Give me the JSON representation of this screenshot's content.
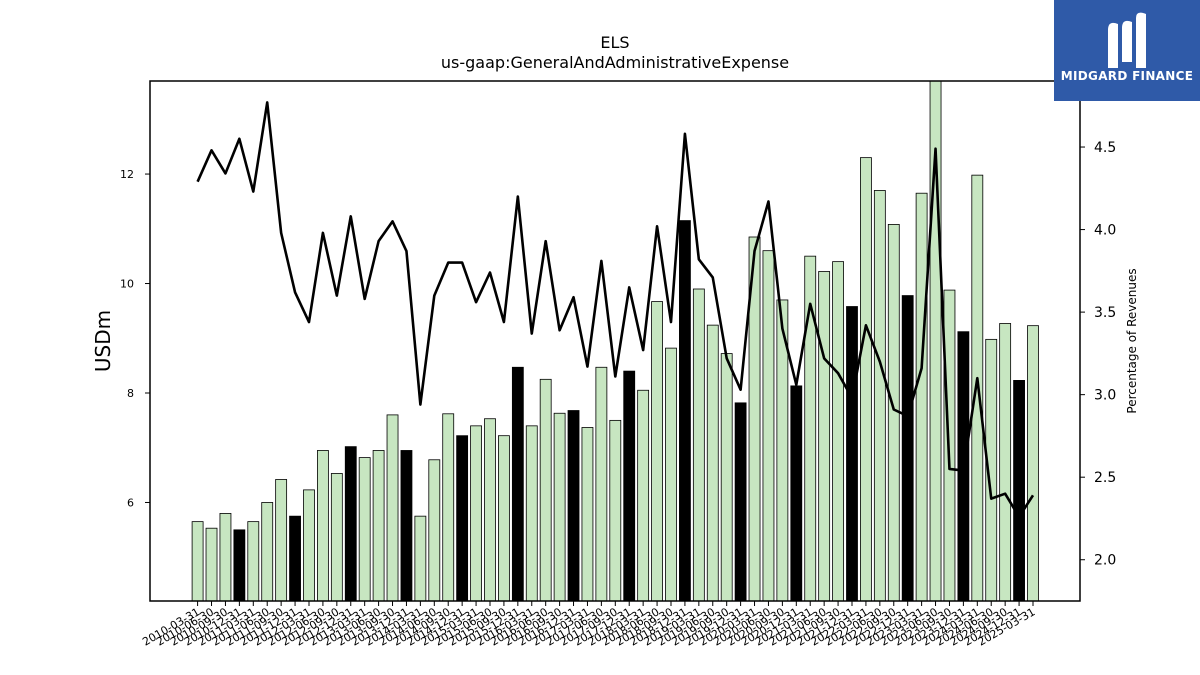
{
  "chart_data": {
    "type": "bar",
    "title": "ELS",
    "subtitle": "us-gaap:GeneralAndAdministrativeExpense",
    "ylabel": "USDm",
    "y2label": "Percentage of Revenues",
    "ylim": [
      4.2,
      13.7
    ],
    "y2lim": [
      1.75,
      4.9
    ],
    "yticks": [
      6,
      8,
      10,
      12
    ],
    "y2ticks": [
      2.0,
      2.5,
      3.0,
      3.5,
      4.0,
      4.5
    ],
    "x": [
      "2010-03-31",
      "2010-06-30",
      "2010-09-30",
      "2010-12-31",
      "2011-03-31",
      "2011-06-30",
      "2011-09-30",
      "2011-12-31",
      "2012-03-31",
      "2012-06-30",
      "2012-09-30",
      "2012-12-31",
      "2013-03-31",
      "2013-06-30",
      "2013-09-30",
      "2013-12-31",
      "2014-03-31",
      "2014-06-30",
      "2014-09-30",
      "2014-12-31",
      "2015-03-31",
      "2015-06-30",
      "2015-09-30",
      "2015-12-31",
      "2016-03-31",
      "2016-06-30",
      "2016-09-30",
      "2016-12-31",
      "2017-03-31",
      "2017-06-30",
      "2017-09-30",
      "2017-12-31",
      "2018-03-31",
      "2018-06-30",
      "2018-09-30",
      "2018-12-31",
      "2019-03-31",
      "2019-06-30",
      "2019-09-30",
      "2019-12-31",
      "2020-03-31",
      "2020-06-30",
      "2020-09-30",
      "2020-12-31",
      "2021-03-31",
      "2021-06-30",
      "2021-09-30",
      "2021-12-31",
      "2022-03-31",
      "2022-06-30",
      "2022-09-30",
      "2022-12-31",
      "2023-03-31",
      "2023-06-30",
      "2023-09-30",
      "2023-12-31",
      "2024-03-31",
      "2024-06-30",
      "2024-09-30",
      "2024-12-31",
      "2025-03-31"
    ],
    "xtick_labels": [
      "2010-03-31",
      "2010-06-30",
      "2010-09-30",
      "2010-12-31",
      "2011-03-31",
      "2011-06-30",
      "2011-09-30",
      "2011-12-31",
      "2012-03-31",
      "2012-06-30",
      "2012-09-30",
      "2012-12-31",
      "2013-03-31",
      "2013-06-30",
      "2013-09-30",
      "2013-12-31",
      "2014-03-31",
      "2014-06-30",
      "2014-09-30",
      "2014-12-31",
      "2015-03-31",
      "2015-06-30",
      "2015-09-30",
      "2015-12-31",
      "2016-03-31",
      "2016-06-30",
      "2016-09-30",
      "2016-12-31",
      "2017-03-31",
      "2017-06-30",
      "2017-09-30",
      "2017-12-31",
      "2018-03-31",
      "2018-06-30",
      "2018-09-30",
      "2018-12-31",
      "2019-03-31",
      "2019-06-30",
      "2019-09-30",
      "2019-12-31",
      "2020-03-31",
      "2020-06-30",
      "2020-09-30",
      "2020-12-31",
      "2021-03-31",
      "2021-06-30",
      "2021-09-30",
      "2021-12-31",
      "2022-03-31",
      "2022-06-30",
      "2022-09-30",
      "2022-12-31",
      "2023-03-31",
      "2023-06-30",
      "2023-09-30",
      "2023-12-31",
      "2024-03-31",
      "2024-06-30",
      "2024-09-30",
      "2024-12-31",
      "2025-03-31"
    ],
    "series": [
      {
        "type": "bar",
        "axis": "left",
        "values": [
          5.65,
          5.53,
          5.8,
          5.5,
          5.65,
          6.0,
          6.42,
          5.75,
          6.23,
          6.95,
          6.53,
          7.02,
          6.82,
          6.95,
          7.6,
          6.95,
          5.75,
          6.78,
          7.62,
          7.22,
          7.4,
          7.53,
          7.22,
          8.47,
          7.4,
          8.25,
          7.63,
          7.68,
          7.37,
          8.47,
          7.5,
          8.4,
          8.05,
          9.67,
          8.82,
          11.15,
          9.9,
          9.24,
          8.72,
          7.82,
          10.85,
          10.6,
          9.7,
          8.13,
          10.5,
          10.22,
          10.4,
          9.58,
          12.3,
          11.7,
          11.08,
          9.78,
          11.65,
          13.85,
          9.88,
          9.12,
          11.98,
          8.98,
          9.27,
          8.23,
          9.23
        ]
      },
      {
        "type": "line",
        "axis": "right",
        "values": [
          4.29,
          4.48,
          4.34,
          4.55,
          4.23,
          4.77,
          3.98,
          3.62,
          3.44,
          3.98,
          3.6,
          4.08,
          3.58,
          3.93,
          4.05,
          3.87,
          2.94,
          3.6,
          3.8,
          3.8,
          3.56,
          3.74,
          3.44,
          4.2,
          3.37,
          3.93,
          3.39,
          3.59,
          3.17,
          3.81,
          3.11,
          3.65,
          3.27,
          4.02,
          3.44,
          4.58,
          3.82,
          3.71,
          3.22,
          3.03,
          3.87,
          4.17,
          3.4,
          3.06,
          3.55,
          3.22,
          3.13,
          2.98,
          3.42,
          3.2,
          2.91,
          2.87,
          3.16,
          4.49,
          2.55,
          2.54,
          3.1,
          2.37,
          2.4,
          2.26,
          2.39
        ]
      }
    ],
    "colors": {
      "bar": "#c7e6c1",
      "bar_highlight": "#000000",
      "line": "#000000"
    },
    "highlight_every": 4,
    "highlight_offset": 3
  },
  "logo": {
    "text": "MIDGARD FINANCE",
    "bg": "#2f5aa8"
  }
}
